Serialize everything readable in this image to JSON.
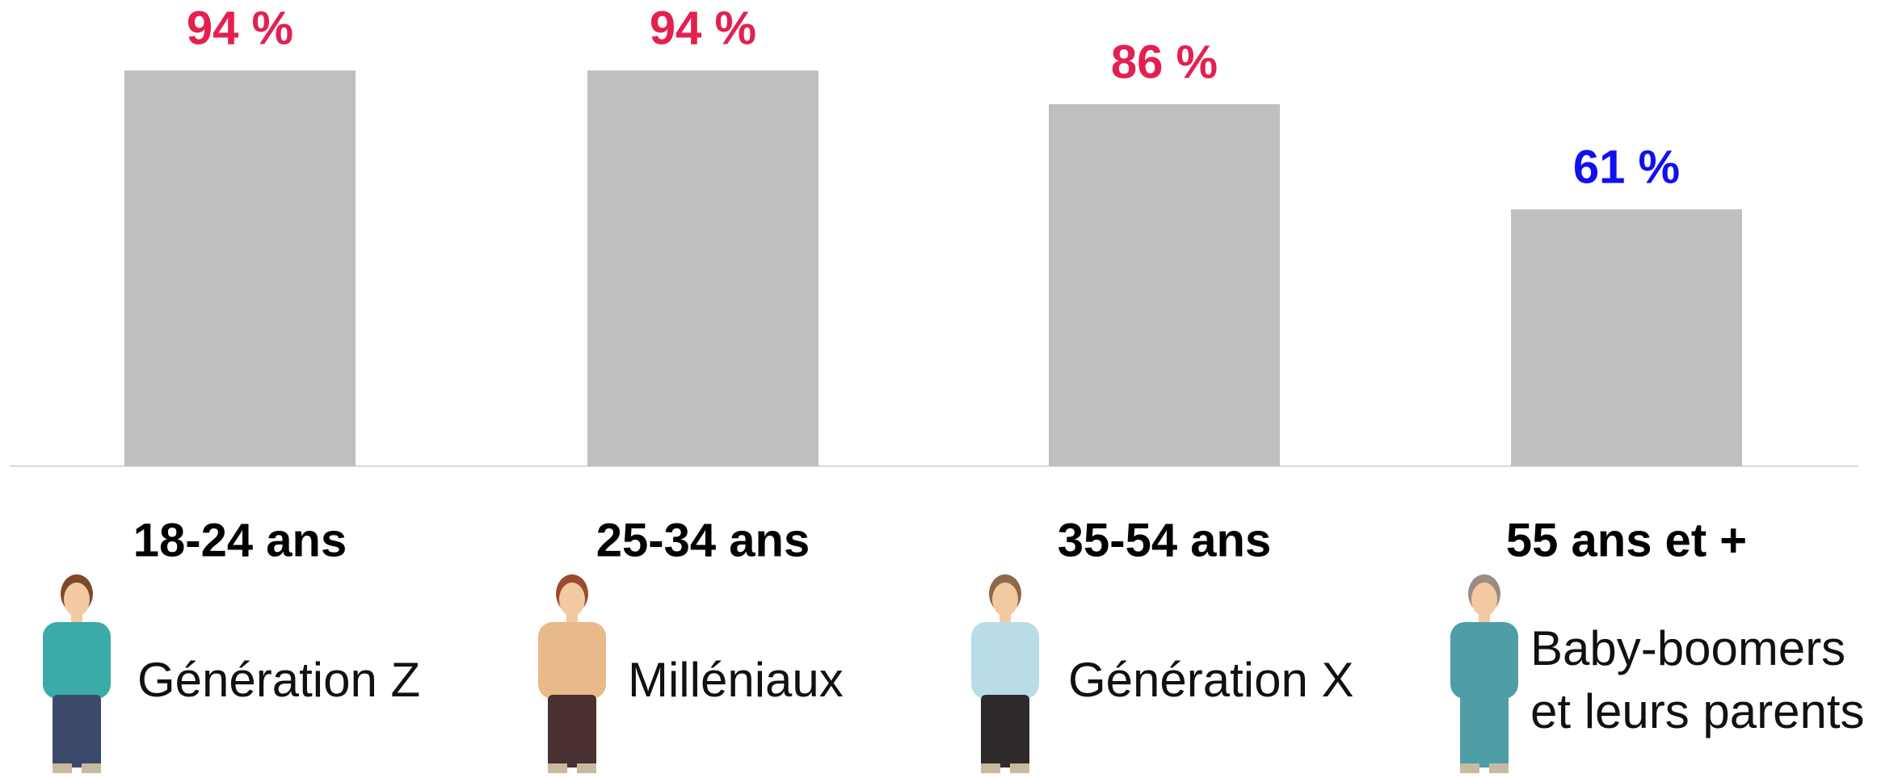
{
  "chart_data": {
    "type": "bar",
    "categories": [
      "18-24 ans",
      "25-34 ans",
      "35-54 ans",
      "55 ans et +"
    ],
    "values": [
      94,
      94,
      86,
      61
    ],
    "value_labels": [
      "94 %",
      "94 %",
      "86 %",
      "61 %"
    ],
    "value_label_colors": [
      "#e3204f",
      "#e3204f",
      "#e3204f",
      "#1010f0"
    ],
    "generations": [
      [
        "Génération Z"
      ],
      [
        "Milléniaux"
      ],
      [
        "Génération X"
      ],
      [
        "Baby-boomers",
        "et leurs parents"
      ]
    ],
    "color": "#bfbfbf",
    "ylim": [
      0,
      100
    ]
  }
}
